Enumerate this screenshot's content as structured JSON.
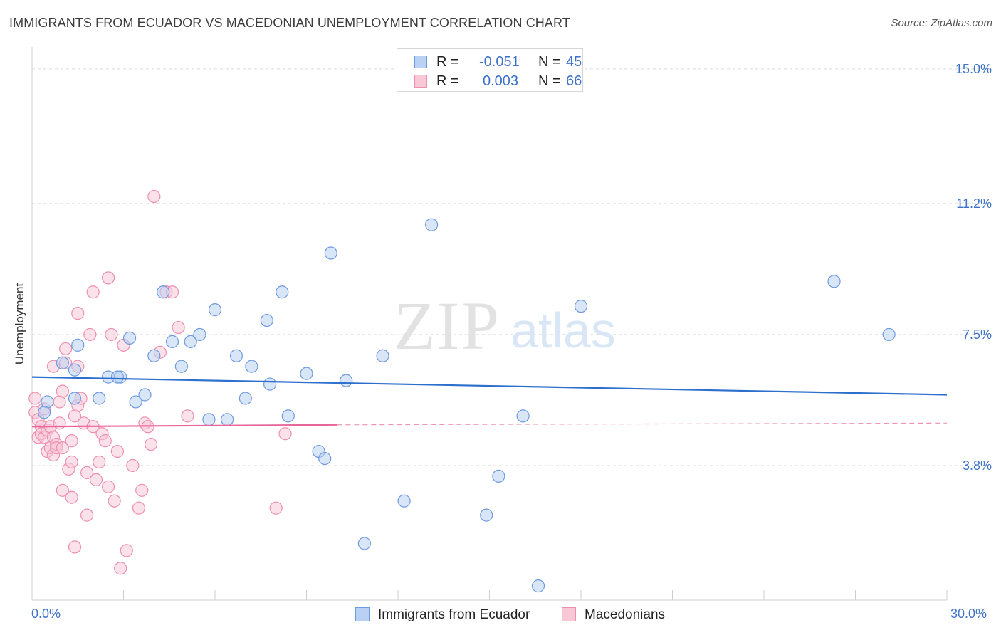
{
  "title": "IMMIGRANTS FROM ECUADOR VS MACEDONIAN UNEMPLOYMENT CORRELATION CHART",
  "source": "Source: ZipAtlas.com",
  "watermark": {
    "zip": "ZIP",
    "atlas": "atlas"
  },
  "legend_top": [
    {
      "r_label": "R =",
      "r_value": "-0.051",
      "n_label": "N =",
      "n_value": "45"
    },
    {
      "r_label": "R =",
      "r_value": "0.003",
      "n_label": "N =",
      "n_value": "66"
    }
  ],
  "legend_bottom": [
    "Immigrants from Ecuador",
    "Macedonians"
  ],
  "colors": {
    "blue_fill": "#b9d1f3",
    "blue_stroke": "#6e9ae0",
    "blue_line": "#2d6fcd",
    "pink_fill": "#f8c8d7",
    "pink_stroke": "#ee8fb0",
    "pink_line": "#e8669a",
    "tick_text": "#3e72c9",
    "grid": "#d9d9d9"
  },
  "chart_data": {
    "type": "scatter",
    "title": "IMMIGRANTS FROM ECUADOR VS MACEDONIAN UNEMPLOYMENT CORRELATION CHART",
    "xlabel": "",
    "ylabel": "Unemployment",
    "xlim": [
      0,
      30
    ],
    "ylim": [
      0,
      15.5
    ],
    "x_tick_labels": [
      "0.0%",
      "30.0%"
    ],
    "y_ticks": [
      3.8,
      7.5,
      11.2,
      15.0
    ],
    "y_tick_labels": [
      "3.8%",
      "7.5%",
      "11.2%",
      "15.0%"
    ],
    "grid": true,
    "series": [
      {
        "name": "Immigrants from Ecuador",
        "color": "blue",
        "points": [
          [
            0.5,
            5.6
          ],
          [
            1.4,
            5.7
          ],
          [
            1.0,
            6.7
          ],
          [
            1.4,
            6.5
          ],
          [
            2.2,
            5.7
          ],
          [
            2.9,
            6.3
          ],
          [
            2.5,
            6.3
          ],
          [
            2.8,
            6.3
          ],
          [
            1.5,
            7.2
          ],
          [
            3.2,
            7.4
          ],
          [
            3.4,
            5.6
          ],
          [
            3.7,
            5.8
          ],
          [
            4.0,
            6.9
          ],
          [
            4.3,
            8.7
          ],
          [
            4.6,
            7.3
          ],
          [
            4.9,
            6.6
          ],
          [
            5.2,
            7.3
          ],
          [
            5.5,
            7.5
          ],
          [
            5.8,
            5.1
          ],
          [
            6.0,
            8.2
          ],
          [
            6.4,
            5.1
          ],
          [
            6.7,
            6.9
          ],
          [
            7.0,
            5.7
          ],
          [
            7.2,
            6.6
          ],
          [
            7.7,
            7.9
          ],
          [
            7.8,
            6.1
          ],
          [
            8.2,
            8.7
          ],
          [
            8.4,
            5.2
          ],
          [
            9.0,
            6.4
          ],
          [
            9.4,
            4.2
          ],
          [
            9.6,
            4.0
          ],
          [
            9.8,
            9.8
          ],
          [
            10.3,
            6.2
          ],
          [
            10.9,
            1.6
          ],
          [
            11.5,
            6.9
          ],
          [
            12.2,
            2.8
          ],
          [
            13.1,
            10.6
          ],
          [
            14.9,
            2.4
          ],
          [
            15.3,
            3.5
          ],
          [
            16.1,
            5.2
          ],
          [
            16.6,
            0.4
          ],
          [
            18.0,
            8.3
          ],
          [
            26.3,
            9.0
          ],
          [
            28.1,
            7.5
          ],
          [
            0.4,
            5.3
          ]
        ]
      },
      {
        "name": "Macedonians",
        "color": "pink",
        "points": [
          [
            0.1,
            5.7
          ],
          [
            0.1,
            5.3
          ],
          [
            0.2,
            5.1
          ],
          [
            0.2,
            4.6
          ],
          [
            0.3,
            4.9
          ],
          [
            0.3,
            4.7
          ],
          [
            0.4,
            4.6
          ],
          [
            0.4,
            5.4
          ],
          [
            0.5,
            4.8
          ],
          [
            0.5,
            4.2
          ],
          [
            0.6,
            4.9
          ],
          [
            0.6,
            4.3
          ],
          [
            0.7,
            4.6
          ],
          [
            0.7,
            4.1
          ],
          [
            0.8,
            4.4
          ],
          [
            0.8,
            4.3
          ],
          [
            0.9,
            5.6
          ],
          [
            0.9,
            5.0
          ],
          [
            1.0,
            4.3
          ],
          [
            1.0,
            3.1
          ],
          [
            1.1,
            7.1
          ],
          [
            1.1,
            6.7
          ],
          [
            1.2,
            3.7
          ],
          [
            1.3,
            2.9
          ],
          [
            1.3,
            4.5
          ],
          [
            1.3,
            3.9
          ],
          [
            1.4,
            5.2
          ],
          [
            1.4,
            1.5
          ],
          [
            1.5,
            8.1
          ],
          [
            1.5,
            5.5
          ],
          [
            1.5,
            6.6
          ],
          [
            1.6,
            5.7
          ],
          [
            1.7,
            5.0
          ],
          [
            1.8,
            2.4
          ],
          [
            1.8,
            3.6
          ],
          [
            1.9,
            7.5
          ],
          [
            2.0,
            4.9
          ],
          [
            2.0,
            8.7
          ],
          [
            2.1,
            3.4
          ],
          [
            2.2,
            3.9
          ],
          [
            2.3,
            4.7
          ],
          [
            2.4,
            4.5
          ],
          [
            2.5,
            9.1
          ],
          [
            2.5,
            3.2
          ],
          [
            2.6,
            7.5
          ],
          [
            2.7,
            2.8
          ],
          [
            2.8,
            4.2
          ],
          [
            2.9,
            0.9
          ],
          [
            3.0,
            7.2
          ],
          [
            3.1,
            1.4
          ],
          [
            3.3,
            3.8
          ],
          [
            3.5,
            2.6
          ],
          [
            3.6,
            3.1
          ],
          [
            3.7,
            5.0
          ],
          [
            3.8,
            4.9
          ],
          [
            3.9,
            4.4
          ],
          [
            4.0,
            11.4
          ],
          [
            4.2,
            7.0
          ],
          [
            4.4,
            8.7
          ],
          [
            4.6,
            8.7
          ],
          [
            4.8,
            7.7
          ],
          [
            5.1,
            5.2
          ],
          [
            8.0,
            2.6
          ],
          [
            8.3,
            4.7
          ],
          [
            0.7,
            6.6
          ],
          [
            1.0,
            5.9
          ]
        ]
      }
    ],
    "trend_lines": [
      {
        "series": "Immigrants from Ecuador",
        "x": [
          0,
          30
        ],
        "y": [
          6.3,
          5.8
        ],
        "style": "solid"
      },
      {
        "series": "Macedonians",
        "x": [
          0,
          10
        ],
        "y": [
          4.9,
          4.95
        ],
        "style": "solid"
      },
      {
        "series": "Macedonians",
        "x": [
          10,
          30
        ],
        "y": [
          4.95,
          5.0
        ],
        "style": "dashed"
      }
    ]
  }
}
